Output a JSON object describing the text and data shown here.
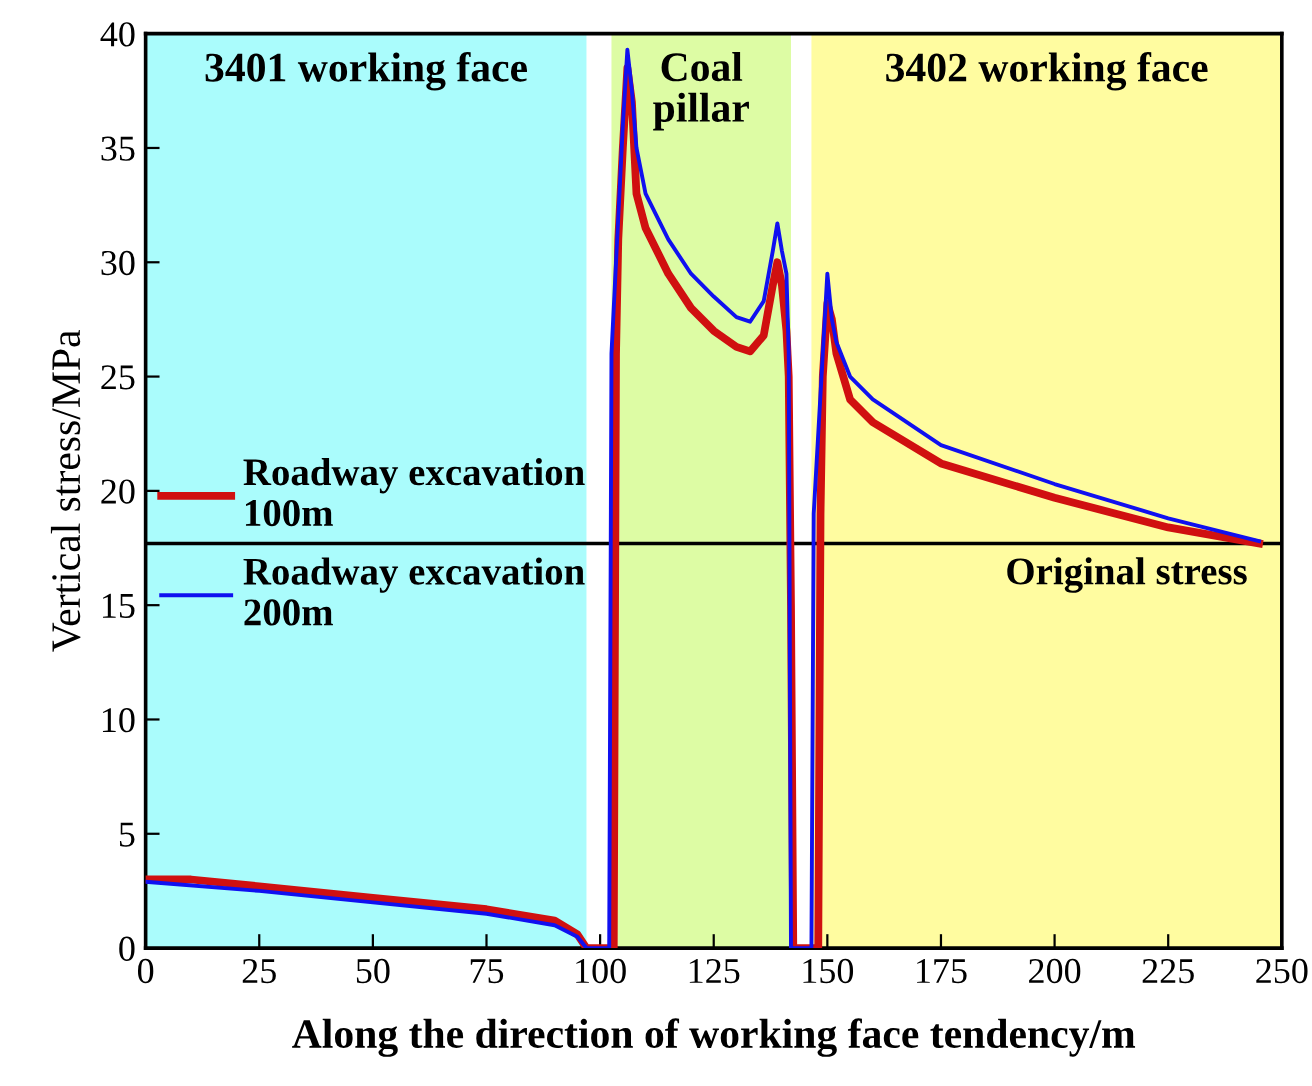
{
  "chart_data": {
    "type": "line",
    "xlabel": "Along the direction of working face tendency/m",
    "ylabel": "Vertical stress/MPa",
    "xlim": [
      0,
      250
    ],
    "ylim": [
      0,
      40
    ],
    "xticks": [
      0,
      25,
      50,
      75,
      100,
      125,
      150,
      175,
      200,
      225,
      250
    ],
    "yticks": [
      0,
      5,
      10,
      15,
      20,
      25,
      30,
      35,
      40
    ],
    "grid": false,
    "legend": "left",
    "line_style": "solid",
    "marker": "none",
    "bands": [
      {
        "axis": "x",
        "from": 0,
        "to": 97,
        "label": "3401 working face",
        "color": "#aafcfc"
      },
      {
        "axis": "x",
        "from": 102.5,
        "to": 142,
        "label": "Coal\npillar",
        "color": "#ddfca4"
      },
      {
        "axis": "x",
        "from": 146.5,
        "to": 250,
        "label": "3402 working face",
        "color": "#fffca0"
      }
    ],
    "ref_lines": [
      {
        "axis": "y",
        "value": 17.7,
        "label": "Original stress",
        "color": "#000000"
      }
    ],
    "series": [
      {
        "name": "Roadway excavation\n100m",
        "color": "#d01010",
        "x": [
          0,
          10,
          25,
          50,
          75,
          90,
          95,
          97,
          103,
          103.5,
          104,
          105,
          106,
          107,
          108,
          110,
          115,
          120,
          125,
          130,
          133,
          136,
          138,
          139,
          140,
          141,
          141.5,
          142,
          142.5,
          148,
          148.5,
          149,
          150,
          151,
          152,
          155,
          160,
          175,
          200,
          225,
          245
        ],
        "values": [
          3.0,
          3.0,
          2.7,
          2.2,
          1.7,
          1.2,
          0.6,
          0,
          0,
          26,
          31,
          35,
          38.5,
          37,
          33,
          31.5,
          29.5,
          28,
          27,
          26.3,
          26.1,
          26.8,
          29,
          30,
          29,
          27,
          25,
          15,
          0,
          0,
          19,
          25,
          28.2,
          27.5,
          26,
          24,
          23,
          21.2,
          19.7,
          18.4,
          17.7
        ]
      },
      {
        "name": "Roadway excavation\n200m",
        "color": "#1010f0",
        "x": [
          0,
          25,
          50,
          75,
          90,
          95,
          97,
          102,
          102.5,
          104,
          105,
          106,
          107,
          108,
          110,
          115,
          120,
          125,
          130,
          133,
          136,
          138,
          139,
          140,
          141,
          141.5,
          142,
          146.5,
          147,
          149,
          150,
          151,
          152,
          155,
          160,
          175,
          200,
          225,
          245
        ],
        "values": [
          2.9,
          2.5,
          2.0,
          1.5,
          1.0,
          0.5,
          0,
          0,
          26,
          32,
          36,
          39.3,
          37.5,
          35,
          33,
          31,
          29.5,
          28.5,
          27.6,
          27.4,
          28.3,
          30.5,
          31.7,
          30.5,
          29.5,
          26,
          0,
          0,
          19,
          26,
          29.5,
          27.5,
          26.5,
          25,
          24,
          22,
          20.3,
          18.8,
          17.8
        ]
      }
    ]
  }
}
